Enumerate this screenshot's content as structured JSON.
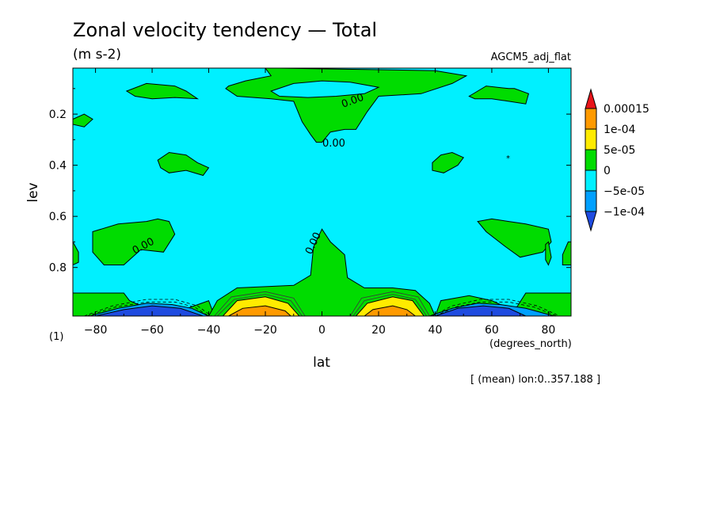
{
  "chart_data": {
    "type": "heatmap",
    "title": "Zonal velocity tendency — Total",
    "units": "(m s-2)",
    "dataset": "AGCM5_adj_flat",
    "xlabel": "lat",
    "xunits": "(degrees_north)",
    "ylabel": "lev",
    "yunits": "(1)",
    "footnote": "[ (mean) lon:0..357.188 ]",
    "xlim": [
      -88,
      88
    ],
    "ylim": [
      0.02,
      0.99
    ],
    "y_reversed": true,
    "x_ticks": [
      -80,
      -60,
      -40,
      -20,
      0,
      20,
      40,
      60,
      80
    ],
    "y_ticks": [
      0.2,
      0.4,
      0.6,
      0.8
    ],
    "contour_labels": [
      "0.00",
      "0.00",
      "0.00",
      "0.00"
    ],
    "colorbar": {
      "labels": [
        "0.00015",
        "1e-04",
        "5e-05",
        "0",
        "-5e-05",
        "-1e-04"
      ],
      "bins": [
        {
          "lower": 0.00015,
          "upper": null,
          "color": "#e8141a"
        },
        {
          "lower": 0.0001,
          "upper": 0.00015,
          "color": "#ff9a00"
        },
        {
          "lower": 5e-05,
          "upper": 0.0001,
          "color": "#ffeb00"
        },
        {
          "lower": 0,
          "upper": 5e-05,
          "color": "#00dc00"
        },
        {
          "lower": -5e-05,
          "upper": 0,
          "color": "#00f0ff"
        },
        {
          "lower": -0.0001,
          "upper": -5e-05,
          "color": "#00a0ff"
        },
        {
          "lower": null,
          "upper": -0.0001,
          "color": "#1f4be0"
        }
      ]
    },
    "regions": [
      {
        "level": "0 to 5e-05",
        "color": "#00dc00",
        "outline": [
          [
            -88,
            0.9
          ],
          [
            -70,
            0.9
          ],
          [
            -68,
            0.93
          ],
          [
            -60,
            0.97
          ],
          [
            -50,
            0.97
          ],
          [
            -40,
            0.93
          ],
          [
            -38,
            0.99
          ],
          [
            -88,
            0.99
          ]
        ]
      },
      {
        "level": "0 to 5e-05",
        "color": "#00dc00",
        "outline": [
          [
            -40,
            0.99
          ],
          [
            -37,
            0.93
          ],
          [
            -30,
            0.88
          ],
          [
            -10,
            0.87
          ],
          [
            -4,
            0.83
          ],
          [
            -3,
            0.72
          ],
          [
            0,
            0.65
          ],
          [
            3,
            0.7
          ],
          [
            8,
            0.75
          ],
          [
            9,
            0.84
          ],
          [
            15,
            0.88
          ],
          [
            25,
            0.88
          ],
          [
            33,
            0.89
          ],
          [
            38,
            0.94
          ],
          [
            40,
            0.99
          ]
        ]
      },
      {
        "level": "0 to 5e-05",
        "color": "#00dc00",
        "outline": [
          [
            40,
            0.99
          ],
          [
            42,
            0.93
          ],
          [
            52,
            0.91
          ],
          [
            60,
            0.93
          ],
          [
            68,
            0.97
          ],
          [
            72,
            0.9
          ],
          [
            88,
            0.9
          ],
          [
            88,
            0.99
          ]
        ]
      },
      {
        "level": "5e-05 to 1e-04",
        "color": "#ffeb00",
        "outline": [
          [
            -35,
            0.99
          ],
          [
            -30,
            0.93
          ],
          [
            -20,
            0.915
          ],
          [
            -12,
            0.94
          ],
          [
            -8,
            0.99
          ]
        ]
      },
      {
        "level": "1e-04 to 0.00015",
        "color": "#ff9a00",
        "outline": [
          [
            -33,
            0.99
          ],
          [
            -28,
            0.96
          ],
          [
            -20,
            0.95
          ],
          [
            -13,
            0.97
          ],
          [
            -11,
            0.99
          ]
        ]
      },
      {
        "level": "5e-05 to 1e-04",
        "color": "#ffeb00",
        "outline": [
          [
            12,
            0.99
          ],
          [
            16,
            0.94
          ],
          [
            25,
            0.915
          ],
          [
            32,
            0.93
          ],
          [
            36,
            0.99
          ]
        ]
      },
      {
        "level": "1e-04 to 0.00015",
        "color": "#ff9a00",
        "outline": [
          [
            15,
            0.99
          ],
          [
            18,
            0.965
          ],
          [
            25,
            0.95
          ],
          [
            30,
            0.965
          ],
          [
            33,
            0.99
          ]
        ]
      },
      {
        "level": "-1e-04 to -5e-05",
        "color": "#00a0ff",
        "outline": [
          [
            -82,
            0.99
          ],
          [
            -72,
            0.96
          ],
          [
            -62,
            0.94
          ],
          [
            -53,
            0.945
          ],
          [
            -46,
            0.96
          ],
          [
            -40,
            0.99
          ]
        ]
      },
      {
        "level": "< -1e-04",
        "color": "#1f4be0",
        "outline": [
          [
            -80,
            0.99
          ],
          [
            -70,
            0.965
          ],
          [
            -60,
            0.95
          ],
          [
            -50,
            0.96
          ],
          [
            -42,
            0.99
          ]
        ]
      },
      {
        "level": "-1e-04 to -5e-05",
        "color": "#00a0ff",
        "outline": [
          [
            38,
            0.99
          ],
          [
            46,
            0.96
          ],
          [
            55,
            0.94
          ],
          [
            63,
            0.945
          ],
          [
            72,
            0.96
          ],
          [
            82,
            0.99
          ]
        ]
      },
      {
        "level": "< -1e-04",
        "color": "#1f4be0",
        "outline": [
          [
            40,
            0.99
          ],
          [
            48,
            0.96
          ],
          [
            57,
            0.95
          ],
          [
            66,
            0.96
          ],
          [
            72,
            0.99
          ]
        ]
      },
      {
        "level": "0 to 5e-05",
        "color": "#00dc00",
        "outline": [
          [
            -20,
            0.02
          ],
          [
            -18,
            0.05
          ],
          [
            -27,
            0.07
          ],
          [
            -33,
            0.09
          ],
          [
            -34,
            0.1
          ],
          [
            -30,
            0.13
          ],
          [
            -18,
            0.14
          ],
          [
            -10,
            0.15
          ],
          [
            -7,
            0.23
          ],
          [
            -4,
            0.28
          ],
          [
            -2,
            0.31
          ],
          [
            0,
            0.31
          ],
          [
            3,
            0.27
          ],
          [
            8,
            0.26
          ],
          [
            12,
            0.26
          ],
          [
            16,
            0.19
          ],
          [
            20,
            0.13
          ],
          [
            35,
            0.12
          ],
          [
            46,
            0.08
          ],
          [
            51,
            0.05
          ],
          [
            40,
            0.03
          ],
          [
            -15,
            0.02
          ]
        ]
      },
      {
        "level": "-5e-05 to 0",
        "color": "#00f0ff",
        "outline": [
          [
            -18,
            0.11
          ],
          [
            -10,
            0.08
          ],
          [
            0,
            0.07
          ],
          [
            10,
            0.075
          ],
          [
            20,
            0.095
          ],
          [
            15,
            0.12
          ],
          [
            5,
            0.13
          ],
          [
            -5,
            0.135
          ],
          [
            -15,
            0.13
          ]
        ]
      },
      {
        "level": "0 to 5e-05",
        "color": "#00dc00",
        "outline": [
          [
            -88,
            0.22
          ],
          [
            -84,
            0.2
          ],
          [
            -81,
            0.22
          ],
          [
            -84,
            0.25
          ],
          [
            -88,
            0.24
          ]
        ]
      },
      {
        "level": "0 to 5e-05",
        "color": "#00dc00",
        "outline": [
          [
            -69,
            0.11
          ],
          [
            -62,
            0.08
          ],
          [
            -52,
            0.09
          ],
          [
            -48,
            0.11
          ],
          [
            -44,
            0.14
          ],
          [
            -52,
            0.135
          ],
          [
            -60,
            0.14
          ],
          [
            -66,
            0.13
          ]
        ]
      },
      {
        "level": "0 to 5e-05",
        "color": "#00dc00",
        "outline": [
          [
            -58,
            0.38
          ],
          [
            -54,
            0.35
          ],
          [
            -48,
            0.36
          ],
          [
            -44,
            0.39
          ],
          [
            -40,
            0.41
          ],
          [
            -42,
            0.44
          ],
          [
            -48,
            0.42
          ],
          [
            -54,
            0.43
          ],
          [
            -57,
            0.41
          ]
        ]
      },
      {
        "level": "0 to 5e-05",
        "color": "#00dc00",
        "outline": [
          [
            39,
            0.39
          ],
          [
            42,
            0.36
          ],
          [
            46,
            0.35
          ],
          [
            50,
            0.37
          ],
          [
            48,
            0.4
          ],
          [
            43,
            0.43
          ],
          [
            39,
            0.42
          ]
        ]
      },
      {
        "level": "0 to 5e-05",
        "color": "#00dc00",
        "outline": [
          [
            52,
            0.13
          ],
          [
            58,
            0.09
          ],
          [
            66,
            0.1
          ],
          [
            68,
            0.1
          ],
          [
            73,
            0.12
          ],
          [
            72,
            0.16
          ],
          [
            66,
            0.15
          ],
          [
            60,
            0.14
          ],
          [
            54,
            0.14
          ]
        ]
      },
      {
        "level": "0 to 5e-05",
        "color": "#00dc00",
        "outline": [
          [
            -81,
            0.66
          ],
          [
            -72,
            0.63
          ],
          [
            -62,
            0.62
          ],
          [
            -58,
            0.61
          ],
          [
            -54,
            0.62
          ],
          [
            -52,
            0.67
          ],
          [
            -56,
            0.74
          ],
          [
            -64,
            0.73
          ],
          [
            -70,
            0.79
          ],
          [
            -77,
            0.79
          ],
          [
            -81,
            0.74
          ]
        ]
      },
      {
        "level": "0 to 5e-05",
        "color": "#00dc00",
        "outline": [
          [
            55,
            0.62
          ],
          [
            60,
            0.61
          ],
          [
            66,
            0.62
          ],
          [
            72,
            0.63
          ],
          [
            80,
            0.65
          ],
          [
            81,
            0.7
          ],
          [
            78,
            0.74
          ],
          [
            70,
            0.76
          ],
          [
            65,
            0.72
          ],
          [
            58,
            0.66
          ]
        ]
      },
      {
        "level": "0 to 5e-05",
        "color": "#00dc00",
        "outline": [
          [
            -88,
            0.7
          ],
          [
            -86,
            0.74
          ],
          [
            -86,
            0.78
          ],
          [
            -88,
            0.79
          ]
        ]
      },
      {
        "level": "0 to 5e-05",
        "color": "#00dc00",
        "outline": [
          [
            87,
            0.7
          ],
          [
            88,
            0.7
          ],
          [
            88,
            0.79
          ],
          [
            85,
            0.79
          ],
          [
            85,
            0.75
          ]
        ]
      },
      {
        "level": "0 to 5e-05",
        "color": "#00dc00",
        "outline": [
          [
            79,
            0.71
          ],
          [
            80,
            0.7
          ],
          [
            81,
            0.76
          ],
          [
            80,
            0.79
          ],
          [
            79,
            0.77
          ]
        ]
      }
    ],
    "dashed_contours": [
      [
        [
          -84,
          0.99
        ],
        [
          -74,
          0.95
        ],
        [
          -62,
          0.925
        ],
        [
          -52,
          0.925
        ],
        [
          -44,
          0.95
        ],
        [
          -39,
          0.99
        ]
      ],
      [
        [
          -83,
          0.99
        ],
        [
          -73,
          0.955
        ],
        [
          -62,
          0.935
        ],
        [
          -52,
          0.935
        ],
        [
          -45,
          0.955
        ],
        [
          -40,
          0.99
        ]
      ],
      [
        [
          39,
          0.99
        ],
        [
          46,
          0.95
        ],
        [
          56,
          0.925
        ],
        [
          66,
          0.925
        ],
        [
          76,
          0.95
        ],
        [
          84,
          0.99
        ]
      ],
      [
        [
          40,
          0.99
        ],
        [
          47,
          0.955
        ],
        [
          56,
          0.935
        ],
        [
          66,
          0.935
        ],
        [
          75,
          0.955
        ],
        [
          83,
          0.99
        ]
      ]
    ],
    "solid_extra_contours": [
      [
        [
          -38,
          0.99
        ],
        [
          -32,
          0.915
        ],
        [
          -20,
          0.895
        ],
        [
          -10,
          0.92
        ],
        [
          -6,
          0.99
        ]
      ],
      [
        [
          -37,
          0.99
        ],
        [
          -31,
          0.925
        ],
        [
          -20,
          0.905
        ],
        [
          -11,
          0.93
        ],
        [
          -7,
          0.99
        ]
      ],
      [
        [
          10,
          0.99
        ],
        [
          14,
          0.92
        ],
        [
          25,
          0.895
        ],
        [
          34,
          0.915
        ],
        [
          38,
          0.99
        ]
      ],
      [
        [
          11,
          0.99
        ],
        [
          15,
          0.93
        ],
        [
          25,
          0.905
        ],
        [
          33,
          0.925
        ],
        [
          37,
          0.99
        ]
      ]
    ]
  }
}
